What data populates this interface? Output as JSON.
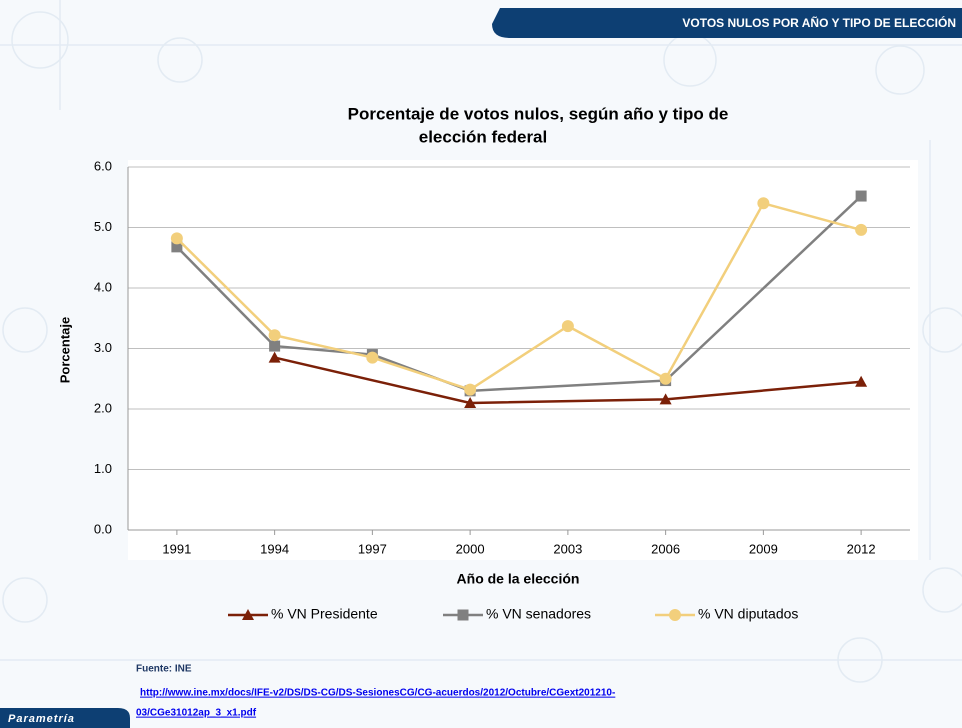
{
  "slide": {
    "header": "VOTOS  NULOS POR AÑO Y TIPO  DE ELECCIÓN",
    "source": "Fuente: INE",
    "link": [
      "http://www.ine.mx/docs/IFE-v2/DS/DS-CG/DS-SesionesCG/CG-acuerdos/2012/Octubre/CGext201210-",
      "03/CGe31012ap_3_x1.pdf"
    ],
    "logo": "Parametría"
  },
  "chart_data": {
    "type": "line",
    "title": [
      "Porcentaje de votos nulos, según año y tipo de",
      "elección federal"
    ],
    "xlabel": "Año de la elección",
    "ylabel": "Porcentaje",
    "xlim": [
      1989.5,
      2013.5
    ],
    "xticks": [
      1991,
      1994,
      1997,
      2000,
      2003,
      2006,
      2009,
      2012
    ],
    "ylim": [
      0,
      6
    ],
    "yticks": [
      {
        "value": 0,
        "label": "0.0"
      },
      {
        "value": 1,
        "label": "1.0"
      },
      {
        "value": 2,
        "label": "2.0"
      },
      {
        "value": 3,
        "label": "3.0"
      },
      {
        "value": 4,
        "label": "4.0"
      },
      {
        "value": 5,
        "label": "5.0"
      },
      {
        "value": 6,
        "label": "6.0"
      }
    ],
    "grid": true,
    "legend": "bottom",
    "series": [
      {
        "name": "% VN Presidente",
        "color": "#7b2008",
        "marker": "triangle",
        "x": [
          1994,
          2000,
          2006,
          2012
        ],
        "values": [
          2.85,
          2.1,
          2.16,
          2.45
        ]
      },
      {
        "name": "% VN senadores",
        "color": "#808080",
        "marker": "square",
        "x": [
          1991,
          1994,
          1997,
          2000,
          2006,
          2012
        ],
        "values": [
          4.68,
          3.04,
          2.9,
          2.3,
          2.47,
          5.52
        ]
      },
      {
        "name": "% VN diputados",
        "color": "#f2cf7c",
        "marker": "circle",
        "x": [
          1991,
          1994,
          1997,
          2000,
          2003,
          2006,
          2009,
          2012
        ],
        "values": [
          4.82,
          3.22,
          2.85,
          2.32,
          3.37,
          2.5,
          5.4,
          4.96
        ]
      }
    ]
  }
}
